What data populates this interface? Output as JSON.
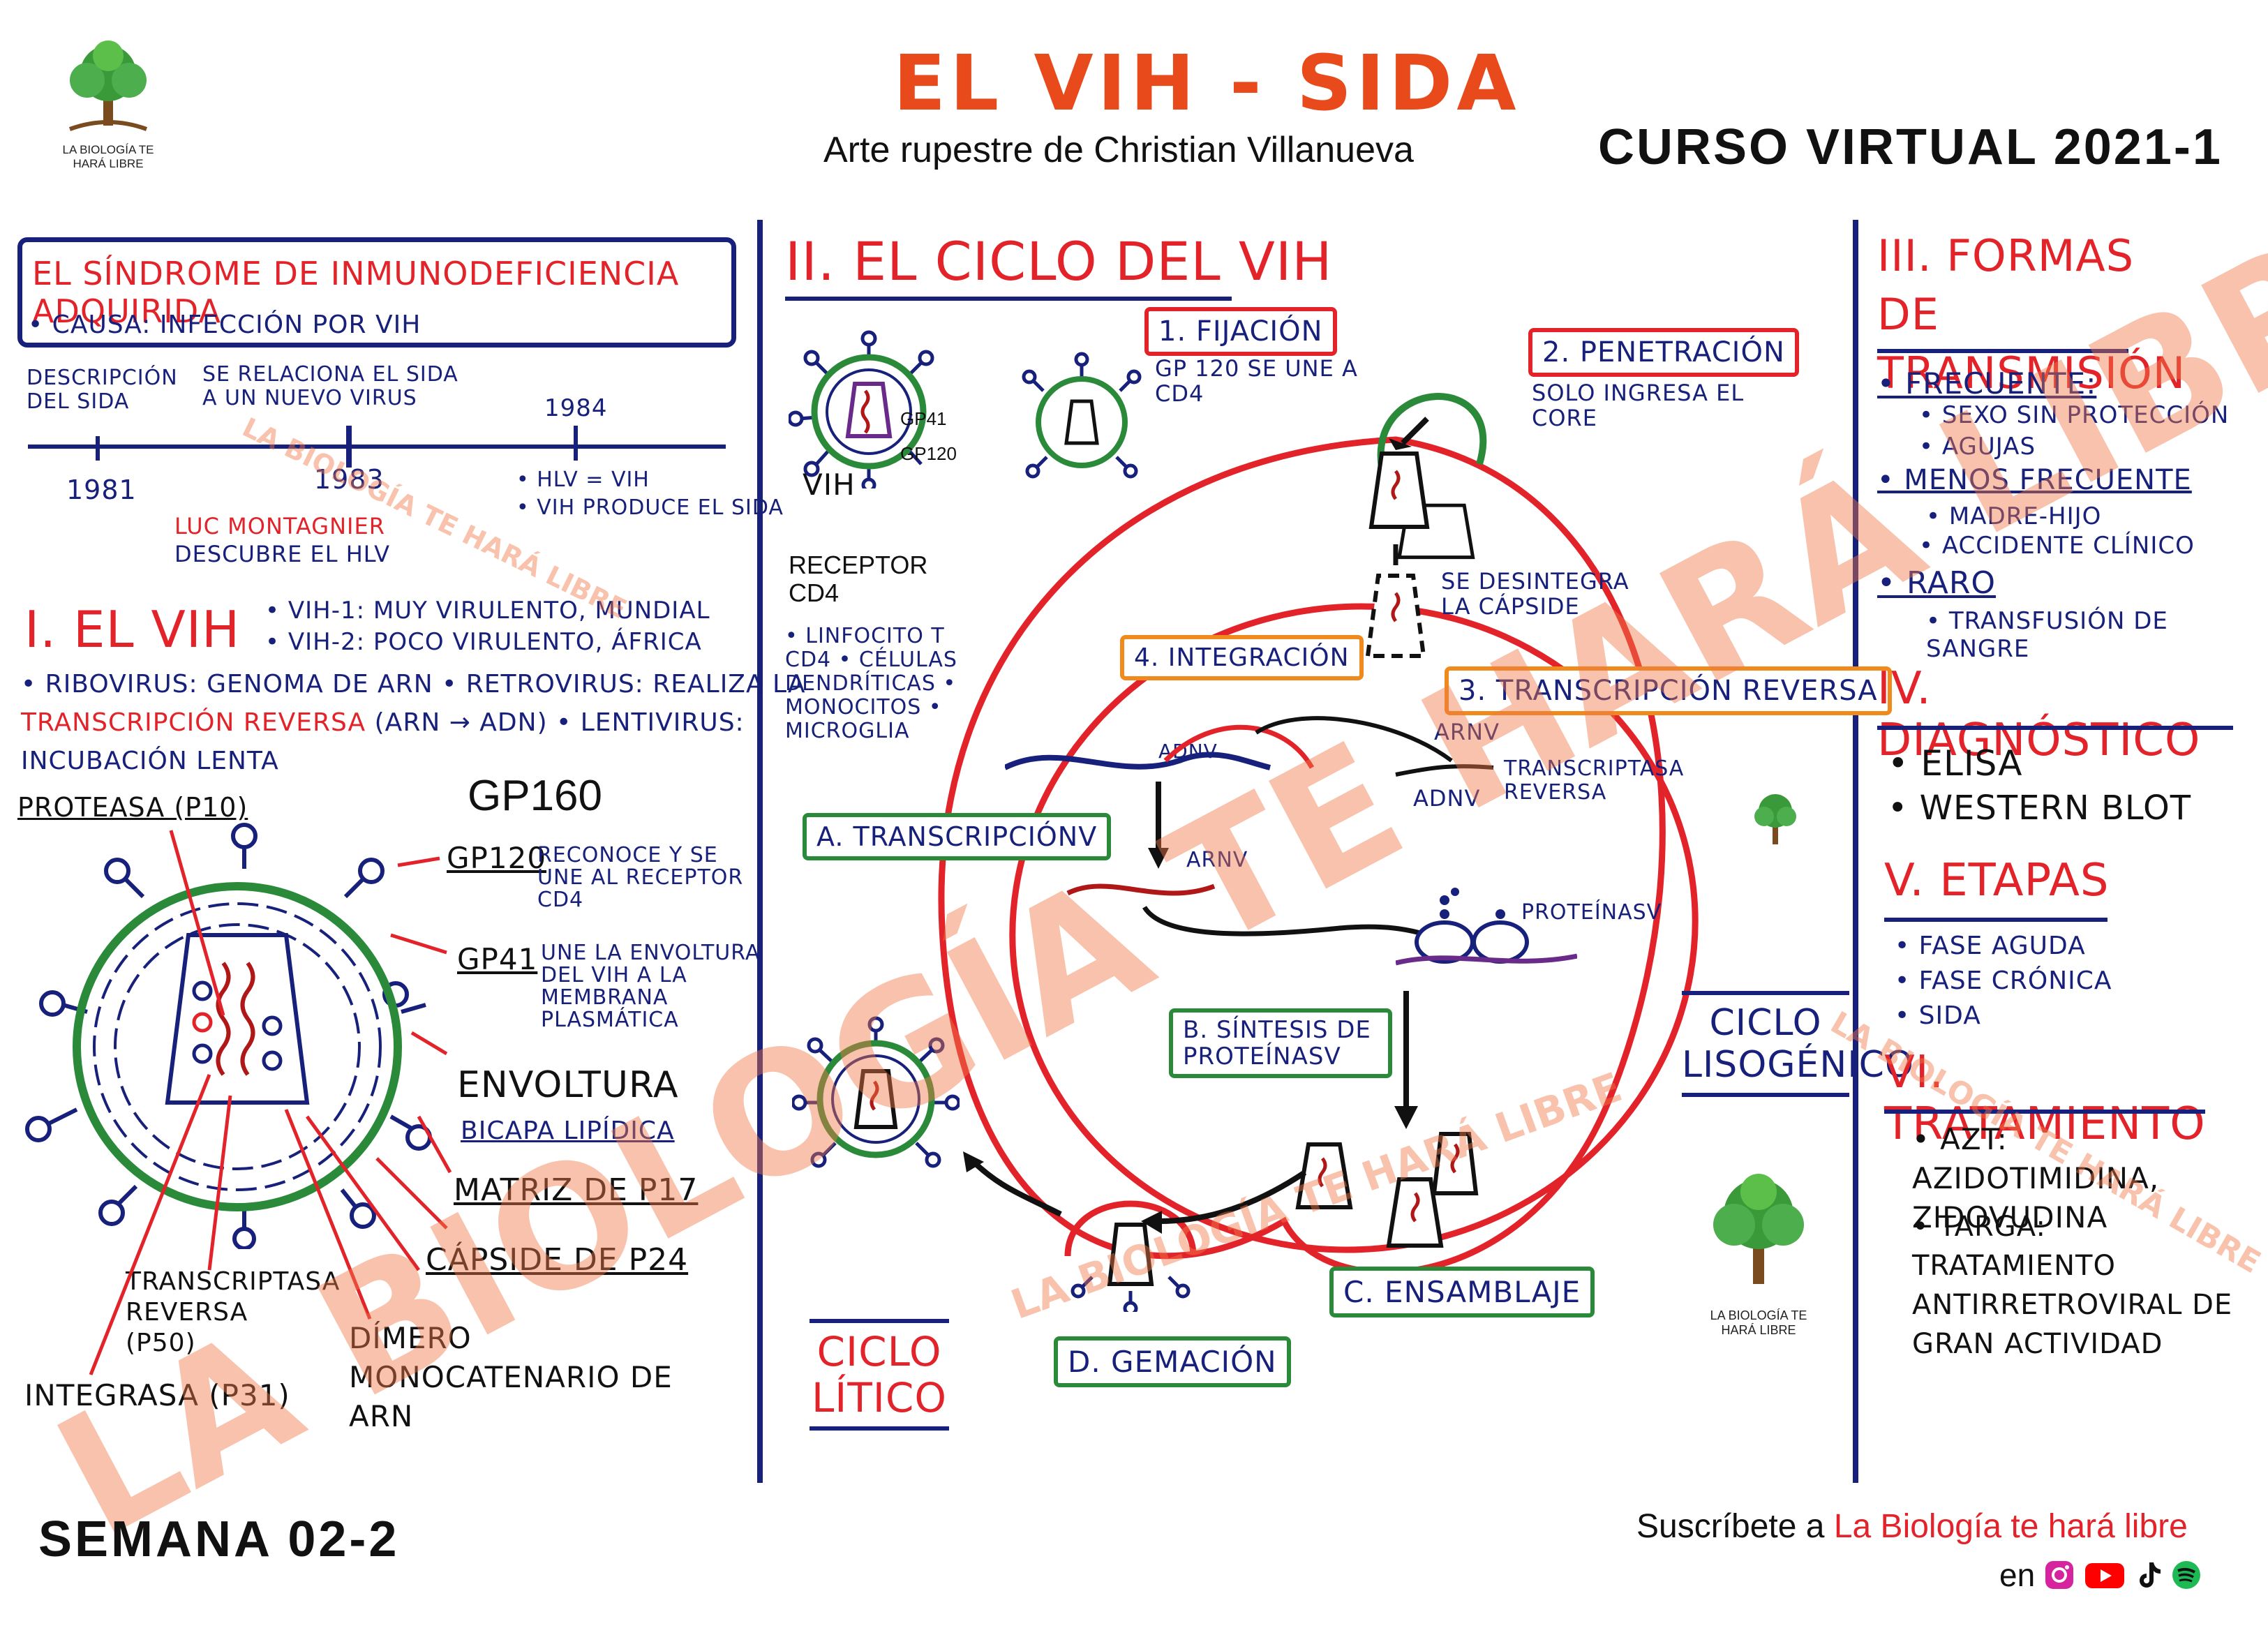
{
  "header": {
    "title": "EL VIH - SIDA",
    "subtitle": "Arte rupestre de Christian Villanueva",
    "course": "CURSO VIRTUAL 2021-1",
    "logo_text": "LA BIOLOGÍA TE HARÁ LIBRE"
  },
  "left": {
    "section_title": "EL SÍNDROME DE INMUNODEFICIENCIA ADQUIRIDA",
    "causa": "• CAUSA: INFECCIÓN POR VIH",
    "timeline": {
      "desc_label": "DESCRIPCIÓN DEL SIDA",
      "rel_label": "SE RELACIONA EL SIDA A UN NUEVO VIRUS",
      "y1984": "1984",
      "y1981": "1981",
      "y1983": "1983",
      "montagnier": "LUC MONTAGNIER",
      "descubre": "DESCUBRE EL HLV",
      "hlv": "• HLV = VIH",
      "produce": "• VIH PRODUCE EL SIDA"
    },
    "vih_title": "I. EL VIH",
    "vih1": "• VIH-1: MUY VIRULENTO, MUNDIAL",
    "vih2": "• VIH-2: POCO VIRULENTO, ÁFRICA",
    "ribo1": "• RIBOVIRUS: GENOMA DE ARN • RETROVIRUS: REALIZA LA",
    "ribo2_red": "TRANSCRIPCIÓN REVERSA",
    "ribo2_rest": "(ARN → ADN) • LENTIVIRUS:",
    "ribo3": "INCUBACIÓN LENTA",
    "labels": {
      "proteasa": "PROTEASA (p10)",
      "gp160": "GP160",
      "gp120": "GP120",
      "gp120_desc": "RECONOCE Y SE UNE AL RECEPTOR CD4",
      "gp41": "GP41",
      "gp41_desc": "UNE LA ENVOLTURA DEL VIH A LA MEMBRANA PLASMÁTICA",
      "envoltura": "ENVOLTURA",
      "bicapa": "BICAPA LIPÍDICA",
      "matriz": "MATRIZ DE p17",
      "capside": "CÁPSIDE DE p24",
      "transcriptasa": "TRANSCRIPTASA REVERSA (p50)",
      "dimero": "DÍMERO MONOCATENARIO DE ARN",
      "integrasa": "INTEGRASA (p31)"
    }
  },
  "center": {
    "title": "II. EL CICLO DEL VIH",
    "vih_label": "VIH",
    "gp41": "GP41",
    "gp120": "GP120",
    "fijacion": "1. FIJACIÓN",
    "fijacion_desc": "GP 120 SE UNE A CD4",
    "penetracion": "2. PENETRACIÓN",
    "penetracion_desc": "SOLO INGRESA EL CORE",
    "receptor": "RECEPTOR CD4",
    "linfocito": "• LINFOCITO T CD4 • CÉLULAS DENDRÍTICAS • MONOCITOS • MICROGLIA",
    "desintegra": "SE DESINTEGRA LA CÁPSIDE",
    "integracion": "4. INTEGRACIÓN",
    "transcripcion_reversa": "3. TRANSCRIPCIÓN REVERSA",
    "arnv": "ARNv",
    "adnv": "ADNv",
    "transcriptasa": "TRANSCRIPTASA REVERSA",
    "transcripcion": "A. TRANSCRIPCIÓNv",
    "arnv2": "ARNv",
    "proteinas": "PROTEÍNASv",
    "sintesis": "B. SÍNTESIS DE PROTEÍNASv",
    "ciclo_lisogenico": "CICLO LISOGÉNICO",
    "ensamblaje": "C. ENSAMBLAJE",
    "gemacion": "D. GEMACIÓN",
    "ciclo_litico": "CICLO LÍTICO"
  },
  "right": {
    "transmision_title": "III. FORMAS DE TRANSMISIÓN",
    "frecuente": "• FRECUENTE:",
    "sexo": "• SEXO SIN PROTECCIÓN",
    "agujas": "• AGUJAS",
    "menos": "• MENOS FRECUENTE",
    "madre": "• MADRE-HIJO",
    "accidente": "• ACCIDENTE CLÍNICO",
    "raro": "• RARO",
    "transfusion": "• TRANSFUSIÓN DE SANGRE",
    "diagnostico_title": "IV. DIAGNÓSTICO",
    "elisa": "• ELISA",
    "western": "• WESTERN BLOT",
    "etapas_title": "V. ETAPAS",
    "aguda": "• FASE AGUDA",
    "cronica": "• FASE CRÓNICA",
    "sida": "• SIDA",
    "tratamiento_title": "VI. TRATAMIENTO",
    "azt": "• AZT: AZIDOTIMIDINA, ZIDOVUDINA",
    "targa": "• TARGA: TRATAMIENTO ANTIRRETROVIRAL DE GRAN ACTIVIDAD"
  },
  "footer": {
    "semana": "SEMANA 02-2",
    "suscribete": "Suscríbete a",
    "canal": "La Biología te hará libre",
    "en": "en"
  },
  "watermark": {
    "big": "LA BIOLOGÍA TE HARÁ LIBRE",
    "small": "LA BIOLOGÍA TE HARÁ LIBRE"
  }
}
